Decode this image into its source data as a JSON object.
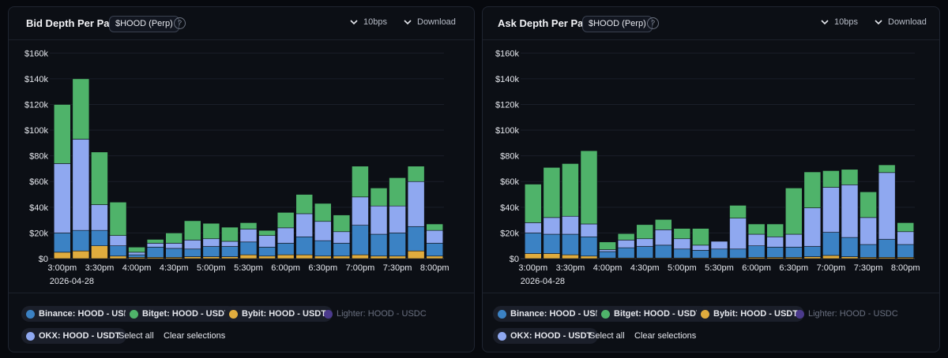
{
  "colors": {
    "binance": "#3b82c4",
    "bitget": "#4fb36a",
    "bybit": "#e0ac3e",
    "lighter": "#4b3a8c",
    "okx": "#8fa8f0"
  },
  "panels": [
    {
      "title": "Bid Depth Per Pair",
      "badge": "$HOOD (Perp)",
      "help": "?",
      "bps_label": "10bps",
      "download_label": "Download",
      "legend": {
        "items": [
          {
            "label": "Binance: HOOD - USDT",
            "color": "#3b82c4",
            "active": true
          },
          {
            "label": "Bitget: HOOD - USDT",
            "color": "#4fb36a",
            "active": true
          },
          {
            "label": "Bybit: HOOD - USDT",
            "color": "#e0ac3e",
            "active": true
          },
          {
            "label": "Lighter: HOOD - USDC",
            "color": "#4b3a8c",
            "active": false
          },
          {
            "label": "OKX: HOOD - USDT",
            "color": "#8fa8f0",
            "active": true
          }
        ],
        "select_all": "Select all",
        "clear": "Clear selections"
      },
      "chart_data": {
        "type": "bar",
        "stacked": true,
        "x": [
          "15:00",
          "15:15",
          "15:30",
          "15:45",
          "16:00",
          "16:15",
          "16:30",
          "16:45",
          "17:00",
          "17:15",
          "17:30",
          "17:45",
          "18:00",
          "18:15",
          "18:30",
          "18:45",
          "19:00",
          "19:15",
          "19:30",
          "19:45",
          "20:00"
        ],
        "x_tick_labels": [
          "3:00pm",
          "3:30pm",
          "4:00pm",
          "4:30pm",
          "5:00pm",
          "5:30pm",
          "6:00pm",
          "6:30pm",
          "7:00pm",
          "7:30pm",
          "8:00pm"
        ],
        "x_date_label": "2026-04-28",
        "y_tick_labels": [
          "$0",
          "$20k",
          "$40k",
          "$60k",
          "$80k",
          "$100k",
          "$120k",
          "$140k",
          "$160k"
        ],
        "ylim": [
          0,
          170000
        ],
        "series": [
          {
            "name": "Bybit: HOOD - USDT",
            "key": "bybit",
            "values": [
              5000,
              6000,
              10000,
              2000,
              1000,
              1000,
              1000,
              1500,
              1500,
              1500,
              3000,
              2000,
              3000,
              3000,
              2000,
              2000,
              3000,
              2000,
              2000,
              6000,
              2000
            ]
          },
          {
            "name": "Binance: HOOD - USDT",
            "key": "binance",
            "values": [
              15000,
              16000,
              12000,
              8000,
              2000,
              8000,
              7000,
              6000,
              8000,
              8000,
              10000,
              7000,
              9000,
              14000,
              12000,
              10000,
              23000,
              17000,
              18000,
              19000,
              10000
            ]
          },
          {
            "name": "OKX: HOOD - USDT",
            "key": "okx",
            "values": [
              54000,
              71000,
              20000,
              8000,
              2000,
              3000,
              4000,
              7000,
              6000,
              4000,
              10000,
              9000,
              12000,
              18000,
              15000,
              9000,
              22000,
              22000,
              21000,
              35000,
              10000
            ]
          },
          {
            "name": "Bitget: HOOD - USDT",
            "key": "bitget",
            "values": [
              46000,
              47000,
              41000,
              26000,
              4000,
              3000,
              8000,
              15000,
              12000,
              11000,
              5000,
              4000,
              12000,
              15000,
              14000,
              13000,
              24000,
              14000,
              22000,
              12000,
              5000
            ]
          }
        ]
      }
    },
    {
      "title": "Ask Depth Per Pair",
      "badge": "$HOOD (Perp)",
      "help": "?",
      "bps_label": "10bps",
      "download_label": "Download",
      "legend": {
        "items": [
          {
            "label": "Binance: HOOD - USDT",
            "color": "#3b82c4",
            "active": true
          },
          {
            "label": "Bitget: HOOD - USDT",
            "color": "#4fb36a",
            "active": true
          },
          {
            "label": "Bybit: HOOD - USDT",
            "color": "#e0ac3e",
            "active": true
          },
          {
            "label": "Lighter: HOOD - USDC",
            "color": "#4b3a8c",
            "active": false
          },
          {
            "label": "OKX: HOOD - USDT",
            "color": "#8fa8f0",
            "active": true
          }
        ],
        "select_all": "Select all",
        "clear": "Clear selections"
      },
      "chart_data": {
        "type": "bar",
        "stacked": true,
        "x": [
          "15:00",
          "15:15",
          "15:30",
          "15:45",
          "16:00",
          "16:15",
          "16:30",
          "16:45",
          "17:00",
          "17:15",
          "17:30",
          "17:45",
          "18:00",
          "18:15",
          "18:30",
          "18:45",
          "19:00",
          "19:15",
          "19:30",
          "19:45",
          "20:00"
        ],
        "x_tick_labels": [
          "3:00pm",
          "3:30pm",
          "4:00pm",
          "4:30pm",
          "5:00pm",
          "5:30pm",
          "6:00pm",
          "6:30pm",
          "7:00pm",
          "7:30pm",
          "8:00pm"
        ],
        "x_date_label": "2026-04-28",
        "y_tick_labels": [
          "$0",
          "$20k",
          "$40k",
          "$60k",
          "$80k",
          "$100k",
          "$120k",
          "$140k",
          "$160k"
        ],
        "ylim": [
          0,
          170000
        ],
        "series": [
          {
            "name": "Bybit: HOOD - USDT",
            "key": "bybit",
            "values": [
              4000,
              4000,
              3000,
              2000,
              500,
              500,
              500,
              500,
              500,
              500,
              500,
              500,
              1000,
              1000,
              1000,
              1500,
              2500,
              1500,
              1000,
              1000,
              1000
            ]
          },
          {
            "name": "Binance: HOOD - USDT",
            "key": "binance",
            "values": [
              16000,
              15000,
              16000,
              15000,
              5000,
              8000,
              9000,
              10000,
              7000,
              6000,
              7000,
              7000,
              9000,
              8000,
              8000,
              8000,
              18000,
              15000,
              10000,
              14000,
              10000
            ]
          },
          {
            "name": "OKX: HOOD - USDT",
            "key": "okx",
            "values": [
              8000,
              13000,
              14000,
              10000,
              1500,
              6000,
              6000,
              12000,
              8000,
              4000,
              6000,
              24000,
              9000,
              8000,
              10000,
              30000,
              35000,
              41000,
              21000,
              52000,
              10000
            ]
          },
          {
            "name": "Bitget: HOOD - USDT",
            "key": "bitget",
            "values": [
              30000,
              39000,
              41000,
              57000,
              6000,
              5000,
              11000,
              8000,
              8000,
              13000,
              0,
              10000,
              8000,
              10000,
              36000,
              28000,
              13000,
              12000,
              20000,
              6000,
              7000
            ]
          }
        ]
      }
    }
  ]
}
